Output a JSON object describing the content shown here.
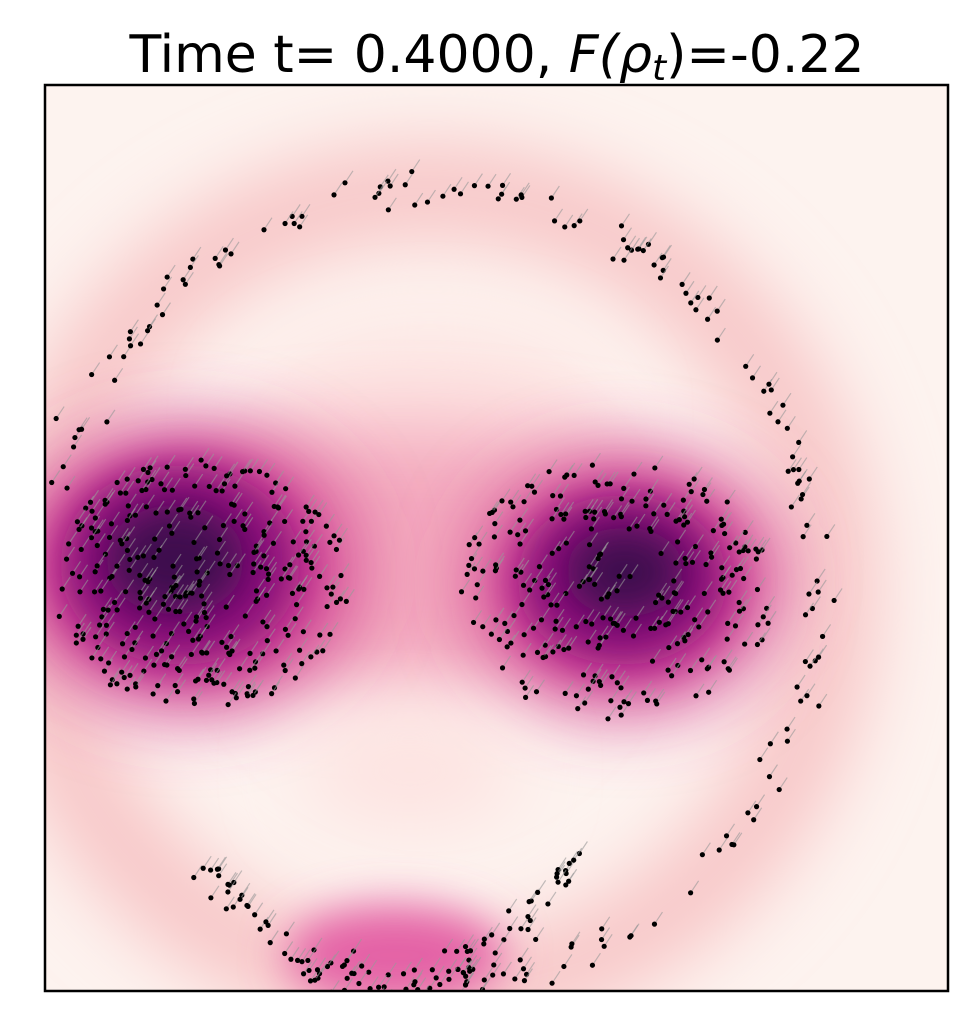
{
  "chart_data": {
    "type": "density",
    "title": {
      "text": "Time t=  0.4000, ",
      "math": "F(ρ",
      "sub": "t",
      "end": ")=-0.22"
    }
  }
}
